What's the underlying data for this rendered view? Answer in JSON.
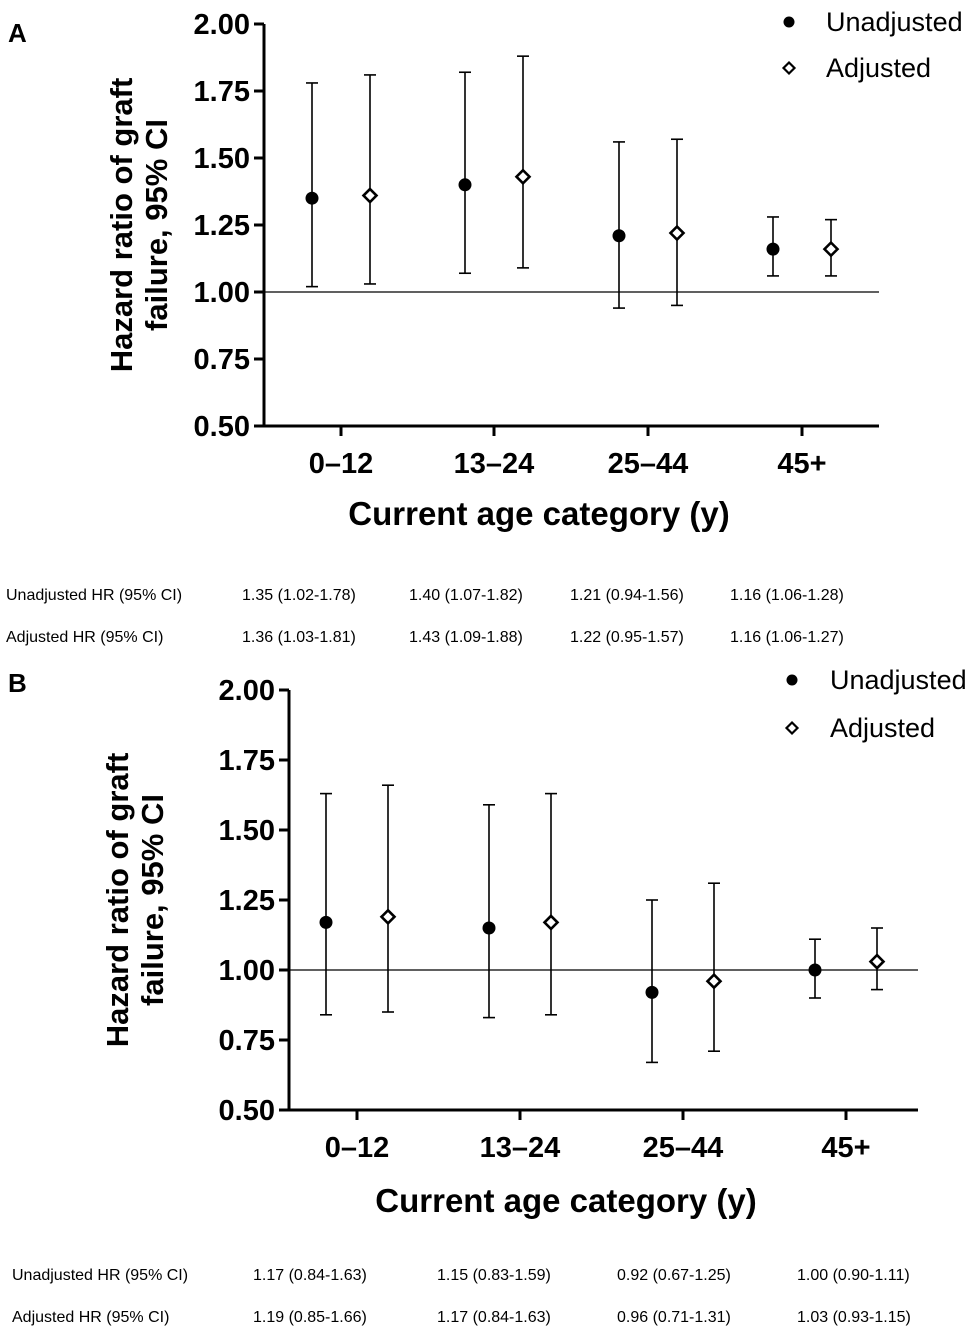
{
  "chart_data": [
    {
      "panel": "A",
      "type": "scatter",
      "categories": [
        "0–12",
        "13–24",
        "25–44",
        "45+"
      ],
      "series": [
        {
          "name": "Unadjusted",
          "marker": "filled-circle",
          "values": [
            1.35,
            1.4,
            1.21,
            1.16
          ],
          "lower": [
            1.02,
            1.07,
            0.94,
            1.06
          ],
          "upper": [
            1.78,
            1.82,
            1.56,
            1.28
          ]
        },
        {
          "name": "Adjusted",
          "marker": "open-diamond",
          "values": [
            1.36,
            1.43,
            1.22,
            1.16
          ],
          "lower": [
            1.03,
            1.09,
            0.95,
            1.06
          ],
          "upper": [
            1.81,
            1.88,
            1.57,
            1.27
          ]
        }
      ],
      "ylabel_line1": "Hazard ratio of graft",
      "ylabel_line2": "failure, 95% CI",
      "xlabel": "Current age category (y)",
      "ylim": [
        0.5,
        2.0
      ],
      "yticks": [
        "0.50",
        "0.75",
        "1.00",
        "1.25",
        "1.50",
        "1.75",
        "2.00"
      ],
      "reference_line": 1.0,
      "legend_position": "top-right",
      "grid": false
    },
    {
      "panel": "B",
      "type": "scatter",
      "categories": [
        "0–12",
        "13–24",
        "25–44",
        "45+"
      ],
      "series": [
        {
          "name": "Unadjusted",
          "marker": "filled-circle",
          "values": [
            1.17,
            1.15,
            0.92,
            1.0
          ],
          "lower": [
            0.84,
            0.83,
            0.67,
            0.9
          ],
          "upper": [
            1.63,
            1.59,
            1.25,
            1.11
          ]
        },
        {
          "name": "Adjusted",
          "marker": "open-diamond",
          "values": [
            1.19,
            1.17,
            0.96,
            1.03
          ],
          "lower": [
            0.85,
            0.84,
            0.71,
            0.93
          ],
          "upper": [
            1.66,
            1.63,
            1.31,
            1.15
          ]
        }
      ],
      "ylabel_line1": "Hazard ratio of graft",
      "ylabel_line2": "failure, 95% CI",
      "xlabel": "Current age category (y)",
      "ylim": [
        0.5,
        2.0
      ],
      "yticks": [
        "0.50",
        "0.75",
        "1.00",
        "1.25",
        "1.50",
        "1.75",
        "2.00"
      ],
      "reference_line": 1.0,
      "legend_position": "top-right",
      "grid": false
    }
  ],
  "panels": {
    "A": {
      "letter": "A",
      "table": [
        {
          "label": "Unadjusted HR (95% CI)",
          "cells": [
            "1.35 (1.02-1.78)",
            "1.40 (1.07-1.82)",
            "1.21 (0.94-1.56)",
            "1.16 (1.06-1.28)"
          ]
        },
        {
          "label": "Adjusted HR (95% CI)",
          "cells": [
            "1.36 (1.03-1.81)",
            "1.43 (1.09-1.88)",
            "1.22 (0.95-1.57)",
            "1.16 (1.06-1.27)"
          ]
        }
      ]
    },
    "B": {
      "letter": "B",
      "table": [
        {
          "label": "Unadjusted HR (95% CI)",
          "cells": [
            "1.17 (0.84-1.63)",
            "1.15 (0.83-1.59)",
            "0.92 (0.67-1.25)",
            "1.00 (0.90-1.11)"
          ]
        },
        {
          "label": "Adjusted HR (95% CI)",
          "cells": [
            "1.19 (0.85-1.66)",
            "1.17 (0.84-1.63)",
            "0.96 (0.71-1.31)",
            "1.03 (0.93-1.15)"
          ]
        }
      ]
    }
  }
}
